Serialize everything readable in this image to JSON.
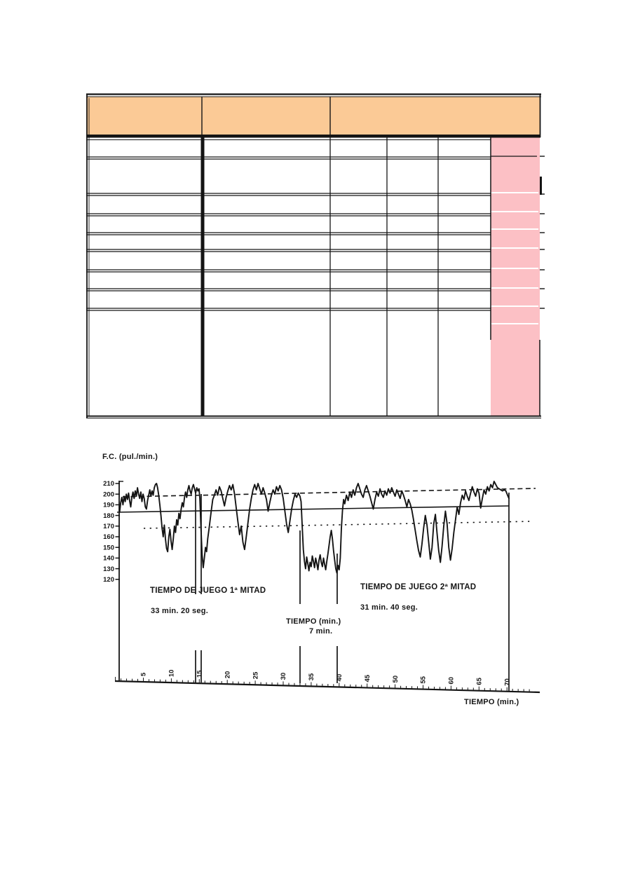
{
  "page": {
    "background": "#ffffff"
  },
  "colors": {
    "table_header_fill": "#fbca96",
    "table_pink_fill": "#fcc0c5",
    "ink": "#141414",
    "pink_separator": "#ffffff"
  },
  "table": {
    "header_fill": "#fbca96",
    "pink_column_fill": "#fcc0c5",
    "grid_color": "#141414",
    "header_cell_count": 3,
    "body_column_count": 6,
    "visible_text": []
  },
  "chart_data": {
    "type": "line",
    "title": "",
    "xlabel": "TIEMPO (min.)",
    "ylabel": "F.C. (pul./min.)",
    "xlim": [
      0,
      74
    ],
    "ylim_labeled": [
      120,
      210
    ],
    "grid": false,
    "x_ticks": [
      5,
      10,
      15,
      20,
      25,
      30,
      35,
      40,
      45,
      50,
      55,
      60,
      65,
      70
    ],
    "y_ticks": [
      210,
      200,
      190,
      180,
      170,
      160,
      150,
      140,
      130,
      120
    ],
    "reference_lines": [
      {
        "style": "dashed",
        "bpm": 199
      },
      {
        "style": "solid",
        "bpm": 184
      },
      {
        "style": "dotted",
        "bpm": 169
      }
    ],
    "events": [
      {
        "label": "TIEMPO DE JUEGO 1ª MITAD",
        "duration": "33 min. 20 seg.",
        "marker_minutes": [
          14.3,
          15.3
        ]
      },
      {
        "label": "TIEMPO (min.)",
        "duration": "7 min.",
        "marker_minutes": [
          33.0,
          39.6
        ]
      },
      {
        "label": "TIEMPO DE JUEGO 2ª MITAD",
        "duration": "31 min. 40 seg.",
        "marker_minutes": [
          70.35
        ]
      }
    ],
    "series": [
      {
        "name": "frecuencia-cardiaca",
        "points_t_bpm": [
          [
            0.75,
            183
          ],
          [
            0.95,
            192
          ],
          [
            1.15,
            197
          ],
          [
            1.35,
            190
          ],
          [
            1.55,
            198
          ],
          [
            1.75,
            193
          ],
          [
            1.95,
            200
          ],
          [
            2.15,
            195
          ],
          [
            2.35,
            201
          ],
          [
            2.55,
            194
          ],
          [
            2.75,
            188
          ],
          [
            2.95,
            197
          ],
          [
            3.15,
            202
          ],
          [
            3.35,
            196
          ],
          [
            3.55,
            203
          ],
          [
            3.75,
            198
          ],
          [
            3.95,
            206
          ],
          [
            4.15,
            200
          ],
          [
            4.35,
            196
          ],
          [
            4.55,
            202
          ],
          [
            4.75,
            193
          ],
          [
            4.95,
            200
          ],
          [
            5.15,
            196
          ],
          [
            5.35,
            188
          ],
          [
            5.55,
            186
          ],
          [
            5.75,
            194
          ],
          [
            5.95,
            199
          ],
          [
            6.15,
            204
          ],
          [
            6.35,
            198
          ],
          [
            6.55,
            203
          ],
          [
            6.75,
            199
          ],
          [
            6.95,
            206
          ],
          [
            7.15,
            209
          ],
          [
            7.35,
            210
          ],
          [
            7.55,
            206
          ],
          [
            7.75,
            199
          ],
          [
            7.95,
            190
          ],
          [
            8.15,
            180
          ],
          [
            8.35,
            168
          ],
          [
            8.55,
            160
          ],
          [
            8.75,
            171
          ],
          [
            8.95,
            158
          ],
          [
            9.15,
            149
          ],
          [
            9.35,
            146
          ],
          [
            9.55,
            160
          ],
          [
            9.75,
            167
          ],
          [
            9.95,
            156
          ],
          [
            10.15,
            148
          ],
          [
            10.35,
            158
          ],
          [
            10.55,
            170
          ],
          [
            10.75,
            164
          ],
          [
            10.95,
            176
          ],
          [
            11.15,
            171
          ],
          [
            11.35,
            182
          ],
          [
            11.55,
            177
          ],
          [
            11.75,
            186
          ],
          [
            11.95,
            192
          ],
          [
            12.15,
            188
          ],
          [
            12.35,
            197
          ],
          [
            12.55,
            202
          ],
          [
            12.75,
            197
          ],
          [
            12.95,
            204
          ],
          [
            13.15,
            208
          ],
          [
            13.35,
            203
          ],
          [
            13.55,
            200
          ],
          [
            13.75,
            206
          ],
          [
            13.95,
            209
          ],
          [
            14.15,
            205
          ],
          [
            14.35,
            201
          ],
          [
            14.55,
            206
          ],
          [
            14.75,
            203
          ],
          [
            14.95,
            205
          ],
          [
            15.1,
            196
          ],
          [
            15.3,
            168
          ],
          [
            15.5,
            143
          ],
          [
            15.7,
            131
          ],
          [
            15.9,
            140
          ],
          [
            16.1,
            150
          ],
          [
            16.3,
            146
          ],
          [
            16.5,
            158
          ],
          [
            16.8,
            170
          ],
          [
            17.1,
            183
          ],
          [
            17.4,
            195
          ],
          [
            17.7,
            199
          ],
          [
            18,
            204
          ],
          [
            18.3,
            199
          ],
          [
            18.6,
            207
          ],
          [
            18.9,
            203
          ],
          [
            19.2,
            196
          ],
          [
            19.5,
            189
          ],
          [
            19.8,
            197
          ],
          [
            20.1,
            203
          ],
          [
            20.4,
            208
          ],
          [
            20.7,
            204
          ],
          [
            21,
            209
          ],
          [
            21.3,
            200
          ],
          [
            21.6,
            187
          ],
          [
            21.9,
            174
          ],
          [
            22.2,
            162
          ],
          [
            22.5,
            170
          ],
          [
            22.8,
            155
          ],
          [
            23.1,
            148
          ],
          [
            23.4,
            160
          ],
          [
            23.7,
            173
          ],
          [
            24,
            186
          ],
          [
            24.3,
            196
          ],
          [
            24.6,
            204
          ],
          [
            24.9,
            209
          ],
          [
            25.2,
            204
          ],
          [
            25.5,
            210
          ],
          [
            25.8,
            205
          ],
          [
            26.1,
            200
          ],
          [
            26.4,
            206
          ],
          [
            26.7,
            201
          ],
          [
            27,
            195
          ],
          [
            27.3,
            184
          ],
          [
            27.6,
            192
          ],
          [
            27.9,
            199
          ],
          [
            28.2,
            204
          ],
          [
            28.5,
            200
          ],
          [
            28.8,
            207
          ],
          [
            29.1,
            203
          ],
          [
            29.4,
            208
          ],
          [
            29.7,
            204
          ],
          [
            30,
            196
          ],
          [
            30.3,
            184
          ],
          [
            30.6,
            172
          ],
          [
            30.9,
            164
          ],
          [
            31.2,
            175
          ],
          [
            31.5,
            186
          ],
          [
            31.8,
            194
          ],
          [
            32.1,
            200
          ],
          [
            32.4,
            197
          ],
          [
            32.7,
            201
          ],
          [
            33,
            198
          ],
          [
            33.2,
            193
          ],
          [
            33.4,
            170
          ],
          [
            33.6,
            148
          ],
          [
            33.8,
            137
          ],
          [
            34,
            130
          ],
          [
            34.2,
            141
          ],
          [
            34.4,
            135
          ],
          [
            34.6,
            128
          ],
          [
            34.8,
            136
          ],
          [
            35,
            132
          ],
          [
            35.2,
            142
          ],
          [
            35.4,
            137
          ],
          [
            35.6,
            131
          ],
          [
            35.8,
            140
          ],
          [
            36,
            135
          ],
          [
            36.2,
            129
          ],
          [
            36.4,
            138
          ],
          [
            36.6,
            143
          ],
          [
            36.8,
            136
          ],
          [
            37,
            132
          ],
          [
            37.2,
            140
          ],
          [
            37.4,
            134
          ],
          [
            37.6,
            129
          ],
          [
            37.8,
            137
          ],
          [
            38,
            144
          ],
          [
            38.2,
            152
          ],
          [
            38.4,
            160
          ],
          [
            38.6,
            166
          ],
          [
            38.8,
            158
          ],
          [
            39,
            147
          ],
          [
            39.2,
            138
          ],
          [
            39.4,
            130
          ],
          [
            39.6,
            126
          ],
          [
            39.8,
            133
          ],
          [
            40,
            129
          ],
          [
            40.2,
            140
          ],
          [
            40.4,
            168
          ],
          [
            40.6,
            185
          ],
          [
            40.8,
            195
          ],
          [
            41,
            191
          ],
          [
            41.3,
            199
          ],
          [
            41.6,
            194
          ],
          [
            41.9,
            202
          ],
          [
            42.2,
            197
          ],
          [
            42.5,
            204
          ],
          [
            42.8,
            199
          ],
          [
            43.1,
            206
          ],
          [
            43.4,
            210
          ],
          [
            43.7,
            205
          ],
          [
            44,
            200
          ],
          [
            44.3,
            197
          ],
          [
            44.6,
            204
          ],
          [
            44.9,
            208
          ],
          [
            45.2,
            203
          ],
          [
            45.5,
            198
          ],
          [
            45.8,
            192
          ],
          [
            46.1,
            186
          ],
          [
            46.4,
            195
          ],
          [
            46.7,
            202
          ],
          [
            47,
            198
          ],
          [
            47.3,
            205
          ],
          [
            47.6,
            200
          ],
          [
            47.9,
            197
          ],
          [
            48.2,
            203
          ],
          [
            48.5,
            199
          ],
          [
            48.8,
            205
          ],
          [
            49.1,
            201
          ],
          [
            49.4,
            206
          ],
          [
            49.7,
            202
          ],
          [
            50,
            198
          ],
          [
            50.3,
            204
          ],
          [
            50.6,
            200
          ],
          [
            50.9,
            196
          ],
          [
            51.2,
            203
          ],
          [
            51.5,
            199
          ],
          [
            51.8,
            194
          ],
          [
            52.1,
            188
          ],
          [
            52.4,
            195
          ],
          [
            52.7,
            191
          ],
          [
            53,
            185
          ],
          [
            53.3,
            176
          ],
          [
            53.6,
            166
          ],
          [
            53.9,
            156
          ],
          [
            54.2,
            147
          ],
          [
            54.5,
            141
          ],
          [
            54.8,
            153
          ],
          [
            55.1,
            168
          ],
          [
            55.4,
            180
          ],
          [
            55.7,
            171
          ],
          [
            56,
            155
          ],
          [
            56.3,
            139
          ],
          [
            56.6,
            150
          ],
          [
            56.9,
            172
          ],
          [
            57.2,
            181
          ],
          [
            57.5,
            163
          ],
          [
            57.8,
            147
          ],
          [
            58.1,
            136
          ],
          [
            58.4,
            151
          ],
          [
            58.7,
            170
          ],
          [
            59,
            184
          ],
          [
            59.3,
            172
          ],
          [
            59.6,
            150
          ],
          [
            59.9,
            138
          ],
          [
            60.2,
            149
          ],
          [
            60.5,
            164
          ],
          [
            60.8,
            176
          ],
          [
            61.1,
            188
          ],
          [
            61.4,
            181
          ],
          [
            61.7,
            192
          ],
          [
            62,
            199
          ],
          [
            62.3,
            195
          ],
          [
            62.6,
            203
          ],
          [
            62.9,
            198
          ],
          [
            63.2,
            194
          ],
          [
            63.5,
            201
          ],
          [
            63.8,
            207
          ],
          [
            64.1,
            202
          ],
          [
            64.4,
            198
          ],
          [
            64.7,
            205
          ],
          [
            65,
            201
          ],
          [
            65.3,
            187
          ],
          [
            65.6,
            196
          ],
          [
            65.9,
            204
          ],
          [
            66.2,
            200
          ],
          [
            66.5,
            207
          ],
          [
            66.8,
            203
          ],
          [
            67.1,
            209
          ],
          [
            67.4,
            206
          ],
          [
            67.7,
            212
          ],
          [
            68,
            209
          ],
          [
            68.3,
            206
          ],
          [
            68.6,
            205
          ],
          [
            68.9,
            204
          ],
          [
            69.2,
            203
          ],
          [
            69.5,
            204
          ],
          [
            69.8,
            203
          ],
          [
            70.1,
            199
          ],
          [
            70.35,
            196
          ]
        ]
      }
    ]
  }
}
